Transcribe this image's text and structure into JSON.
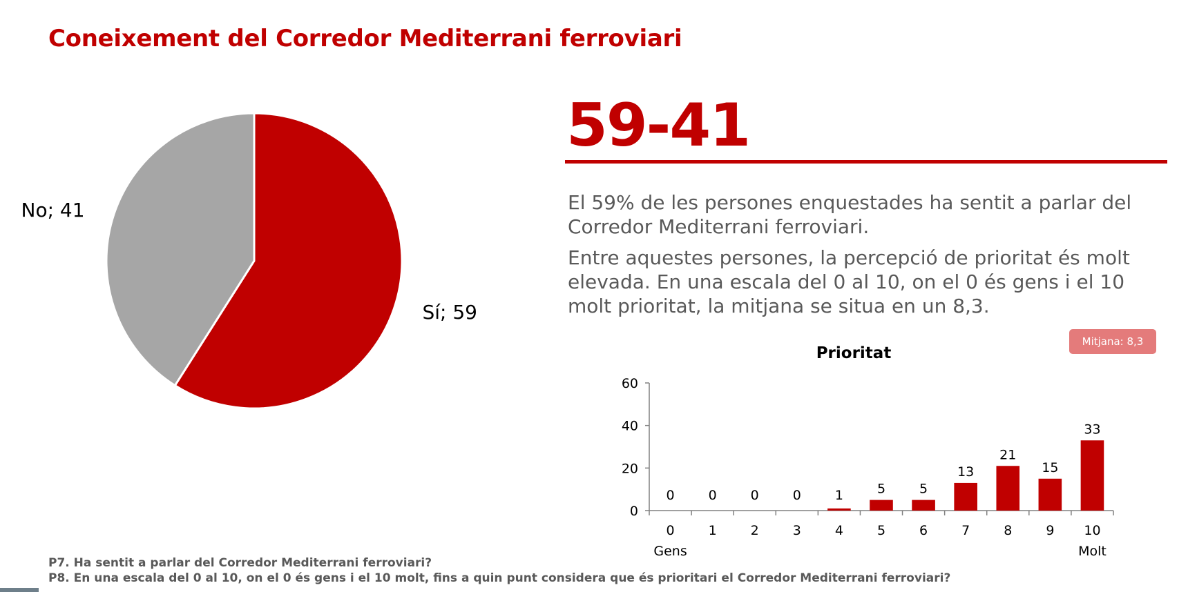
{
  "title": "Coneixement del Corredor Mediterrani ferroviari",
  "headline": "59-41",
  "paragraphs": [
    "El 59% de les persones enquestades ha sentit a parlar del Corredor Mediterrani ferroviari.",
    "Entre aquestes persones, la percepció de prioritat és molt elevada. En una escala del 0 al 10, on el 0 és gens i el 10 molt prioritat, la mitjana se situa en un 8,3."
  ],
  "badge": "Mitjana: 8,3",
  "footnotes": [
    "P7. Ha sentit a parlar del Corredor Mediterrani ferroviari?",
    "P8. En una escala del 0 al 10, on el 0 és gens i el 10 molt, fins a quin punt considera que és prioritari el Corredor Mediterrani ferroviari?"
  ],
  "chart_data": [
    {
      "type": "pie",
      "slices": [
        {
          "label": "Sí",
          "value": 59,
          "display": "Sí; 59",
          "color": "#c00000"
        },
        {
          "label": "No",
          "value": 41,
          "display": "No; 41",
          "color": "#a6a6a6"
        }
      ]
    },
    {
      "type": "bar",
      "title": "Prioritat",
      "categories": [
        "0",
        "1",
        "2",
        "3",
        "4",
        "5",
        "6",
        "7",
        "8",
        "9",
        "10"
      ],
      "category_sublabels": {
        "0": "Gens",
        "10": "Molt"
      },
      "values": [
        0,
        0,
        0,
        0,
        1,
        5,
        5,
        13,
        21,
        15,
        33
      ],
      "ylim": [
        0,
        60
      ],
      "yticks": [
        0,
        20,
        40,
        60
      ],
      "color": "#c00000",
      "grid": false,
      "legend": "none"
    }
  ]
}
